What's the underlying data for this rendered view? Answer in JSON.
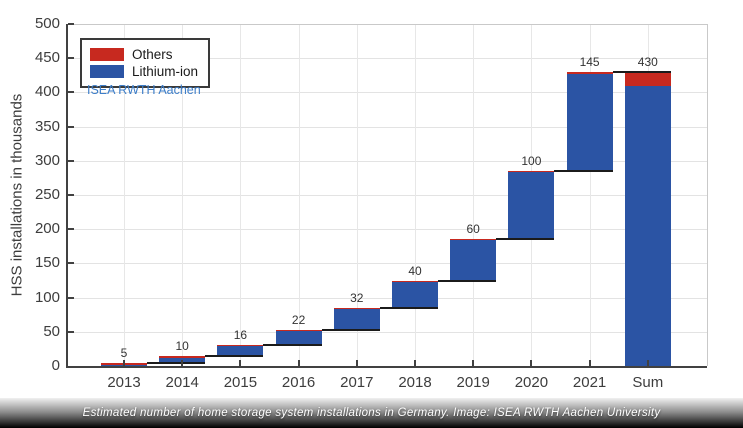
{
  "chart_data": {
    "type": "bar",
    "subtype": "stacked-waterfall",
    "title": "",
    "xlabel": "",
    "ylabel": "HSS installations in thousands",
    "ylim": [
      0,
      500
    ],
    "ytick_step": 50,
    "grid": true,
    "legend_position": "top-left",
    "categories": [
      "2013",
      "2014",
      "2015",
      "2016",
      "2017",
      "2018",
      "2019",
      "2020",
      "2021",
      "Sum"
    ],
    "bar_starts": [
      0,
      5,
      15,
      31,
      53,
      85,
      125,
      185,
      285,
      0
    ],
    "series": [
      {
        "name": "Others",
        "color": "#c7291f",
        "values": [
          4,
          3,
          2,
          2,
          2,
          2,
          1,
          2,
          3,
          20
        ]
      },
      {
        "name": "Lithium-ion",
        "color": "#2b54a4",
        "values": [
          1,
          7,
          14,
          20,
          30,
          38,
          59,
          98,
          142,
          410
        ]
      }
    ],
    "totals": [
      5,
      10,
      16,
      22,
      32,
      40,
      60,
      100,
      145,
      430
    ],
    "total_labels": [
      "5",
      "10",
      "16",
      "22",
      "32",
      "40",
      "60",
      "100",
      "145",
      "430"
    ]
  },
  "annotation": {
    "text": "ISEA RWTH Aachen",
    "color": "#3d7ec9"
  },
  "caption": {
    "text": "Estimated number of home storage system installations in Germany. Image: ISEA RWTH Aachen University"
  }
}
